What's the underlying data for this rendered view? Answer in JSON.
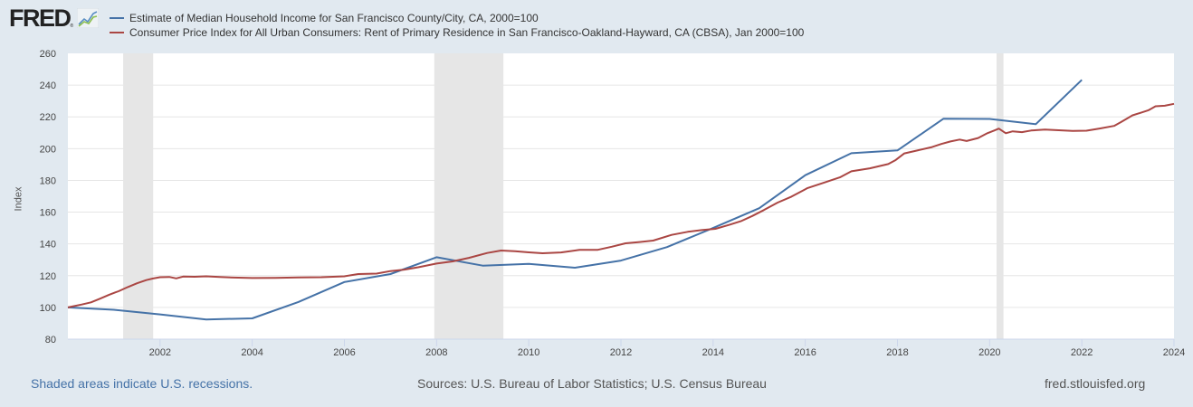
{
  "header": {
    "logo_text": "FRED",
    "logo_mark": "®",
    "logo_icon": "chart-line-icon"
  },
  "footer": {
    "recession_note": "Shaded areas indicate U.S. recessions.",
    "sources": "Sources: U.S. Bureau of Labor Statistics; U.S. Census Bureau",
    "site": "fred.stlouisfed.org"
  },
  "chart_data": {
    "type": "line",
    "title": "",
    "xlabel": "",
    "ylabel": "Index",
    "xlim": [
      2000,
      2024
    ],
    "ylim": [
      80,
      260
    ],
    "grid": true,
    "legend_position": "top-left",
    "x_ticks": [
      "2002",
      "2004",
      "2006",
      "2008",
      "2010",
      "2012",
      "2014",
      "2016",
      "2018",
      "2020",
      "2022",
      "2024"
    ],
    "y_ticks": [
      "80",
      "100",
      "120",
      "140",
      "160",
      "180",
      "200",
      "220",
      "240",
      "260"
    ],
    "recessions": [
      {
        "start": 2001.2,
        "end": 2001.85
      },
      {
        "start": 2007.95,
        "end": 2009.45
      },
      {
        "start": 2020.15,
        "end": 2020.3
      }
    ],
    "series": [
      {
        "name": "Estimate of Median Household Income for San Francisco County/City, CA, 2000=100",
        "color": "#4572a7",
        "x": [
          2000,
          2001,
          2002,
          2003,
          2004,
          2005,
          2006,
          2007,
          2008,
          2009,
          2010,
          2011,
          2012,
          2013,
          2014,
          2015,
          2016,
          2017,
          2018,
          2019,
          2020,
          2021,
          2022
        ],
        "y": [
          100,
          98.5,
          95.6,
          92.4,
          93.1,
          103.4,
          116.0,
          121.0,
          131.6,
          126.3,
          127.4,
          125.0,
          129.5,
          138.0,
          150.0,
          162.5,
          183.3,
          197.1,
          198.9,
          218.9,
          218.7,
          215.4,
          243.3
        ]
      },
      {
        "name": "Consumer Price Index for All Urban Consumers: Rent of Primary Residence in San Francisco-Oakland-Hayward, CA (CBSA), Jan 2000=100",
        "color": "#aa4643",
        "x": [
          2000.0,
          2000.3,
          2000.5,
          2000.7,
          2000.9,
          2001.1,
          2001.3,
          2001.5,
          2001.7,
          2001.85,
          2002.0,
          2002.2,
          2002.35,
          2002.5,
          2002.75,
          2003.0,
          2003.3,
          2003.6,
          2004.0,
          2004.5,
          2005.0,
          2005.5,
          2006.0,
          2006.3,
          2006.7,
          2007.0,
          2007.3,
          2007.6,
          2008.0,
          2008.35,
          2008.7,
          2009.1,
          2009.4,
          2009.7,
          2010.0,
          2010.3,
          2010.7,
          2011.1,
          2011.5,
          2011.8,
          2012.1,
          2012.4,
          2012.7,
          2013.1,
          2013.45,
          2013.75,
          2014.05,
          2014.35,
          2014.6,
          2014.85,
          2015.1,
          2015.4,
          2015.7,
          2016.05,
          2016.4,
          2016.75,
          2017.0,
          2017.4,
          2017.8,
          2017.95,
          2018.15,
          2018.45,
          2018.75,
          2018.95,
          2019.15,
          2019.35,
          2019.5,
          2019.75,
          2019.95,
          2020.1,
          2020.2,
          2020.35,
          2020.5,
          2020.7,
          2020.9,
          2021.2,
          2021.5,
          2021.8,
          2022.1,
          2022.4,
          2022.7,
          2022.85,
          2023.1,
          2023.3,
          2023.45,
          2023.6,
          2023.8,
          2024.0
        ],
        "y": [
          100,
          101.8,
          103.2,
          105.5,
          108.0,
          110.2,
          112.8,
          115.2,
          117.2,
          118.2,
          119.0,
          119.2,
          118.3,
          119.4,
          119.3,
          119.6,
          119.2,
          118.8,
          118.5,
          118.6,
          118.9,
          119.0,
          119.6,
          121.0,
          121.3,
          122.9,
          123.8,
          125.3,
          127.6,
          129.0,
          131.2,
          134.3,
          135.8,
          135.4,
          134.7,
          134.1,
          134.6,
          136.2,
          136.3,
          138.2,
          140.4,
          141.2,
          142.1,
          145.7,
          147.6,
          148.7,
          149.5,
          152.0,
          154.3,
          157.6,
          161.3,
          166.0,
          169.8,
          175.2,
          178.5,
          181.9,
          185.7,
          187.6,
          190.3,
          192.6,
          197.0,
          199.0,
          201.0,
          202.9,
          204.5,
          205.7,
          204.8,
          206.7,
          209.7,
          211.4,
          212.6,
          209.7,
          210.9,
          210.4,
          211.4,
          212.0,
          211.6,
          211.2,
          211.3,
          212.7,
          214.3,
          216.7,
          221.0,
          222.8,
          224.2,
          226.7,
          227.0,
          228.2
        ]
      }
    ]
  }
}
